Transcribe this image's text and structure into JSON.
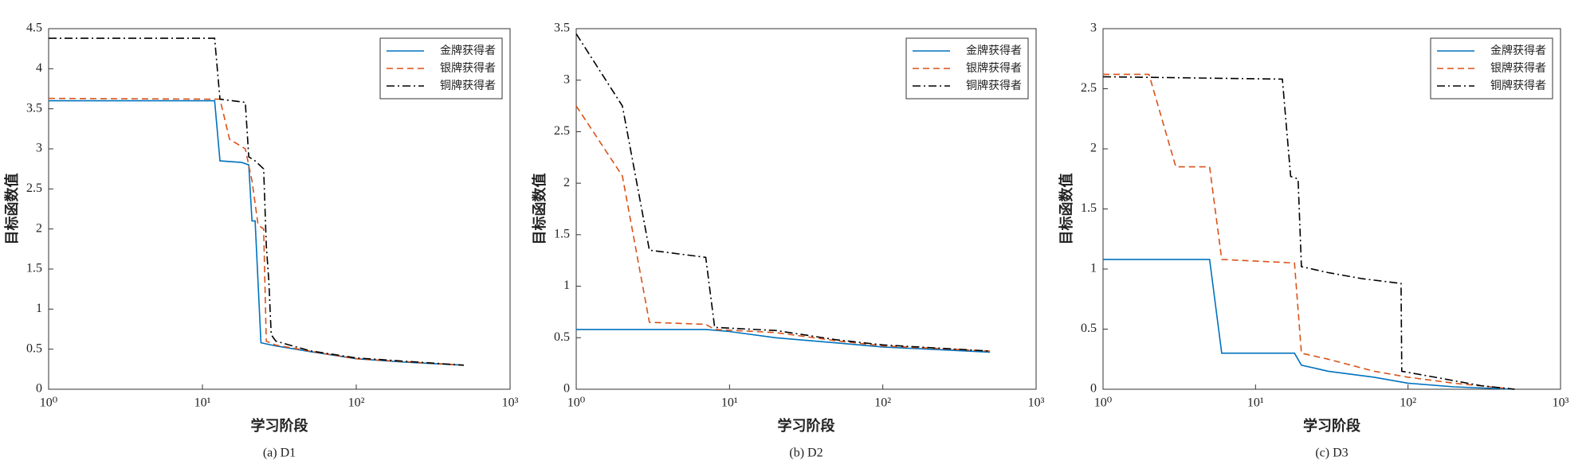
{
  "chart_data": [
    {
      "type": "line",
      "caption": "(a)  D1",
      "xlabel": "学习阶段",
      "ylabel": "目标函数值",
      "xscale": "log",
      "xlim": [
        1,
        1000
      ],
      "xticks": [
        {
          "value": 1,
          "label": "10⁰"
        },
        {
          "value": 10,
          "label": "10¹"
        },
        {
          "value": 100,
          "label": "10²"
        },
        {
          "value": 1000,
          "label": "10³"
        }
      ],
      "ylim": [
        0,
        4.5
      ],
      "yticks": [
        0,
        0.5,
        1,
        1.5,
        2,
        2.5,
        3,
        3.5,
        4,
        4.5
      ],
      "legend": "upper right",
      "series": [
        {
          "name": "金牌获得者",
          "color": "#0072bd",
          "linestyle": "solid",
          "x": [
            1,
            12,
            13,
            18,
            20,
            21,
            22,
            24,
            30,
            50,
            100,
            200,
            500
          ],
          "values": [
            3.6,
            3.6,
            2.85,
            2.83,
            2.8,
            2.1,
            2.1,
            0.58,
            0.54,
            0.47,
            0.38,
            0.34,
            0.3
          ]
        },
        {
          "name": "银牌获得者",
          "color": "#d95319",
          "linestyle": "dashed",
          "x": [
            1,
            13,
            15,
            19,
            21,
            23,
            25,
            26,
            30,
            60,
            100,
            500
          ],
          "values": [
            3.63,
            3.62,
            3.12,
            3.0,
            2.6,
            2.05,
            2.0,
            0.6,
            0.55,
            0.45,
            0.38,
            0.3
          ]
        },
        {
          "name": "铜牌获得者",
          "color": "#000000",
          "linestyle": "dashdot",
          "x": [
            1,
            12,
            13,
            19,
            20,
            22,
            25,
            26,
            27,
            28,
            30,
            50,
            100,
            500
          ],
          "values": [
            4.38,
            4.38,
            3.62,
            3.58,
            2.9,
            2.85,
            2.75,
            1.8,
            1.35,
            0.68,
            0.6,
            0.48,
            0.39,
            0.3
          ]
        }
      ]
    },
    {
      "type": "line",
      "caption": "(b)  D2",
      "xlabel": "学习阶段",
      "ylabel": "目标函数值",
      "xscale": "log",
      "xlim": [
        1,
        1000
      ],
      "xticks": [
        {
          "value": 1,
          "label": "10⁰"
        },
        {
          "value": 10,
          "label": "10¹"
        },
        {
          "value": 100,
          "label": "10²"
        },
        {
          "value": 1000,
          "label": "10³"
        }
      ],
      "ylim": [
        0,
        3.5
      ],
      "yticks": [
        0,
        0.5,
        1,
        1.5,
        2,
        2.5,
        3,
        3.5
      ],
      "legend": "upper right",
      "series": [
        {
          "name": "金牌获得者",
          "color": "#0072bd",
          "linestyle": "solid",
          "x": [
            1,
            7,
            10,
            20,
            50,
            100,
            500
          ],
          "values": [
            0.58,
            0.58,
            0.56,
            0.5,
            0.45,
            0.41,
            0.36
          ]
        },
        {
          "name": "银牌获得者",
          "color": "#d95319",
          "linestyle": "dashed",
          "x": [
            1,
            2,
            3,
            7,
            8,
            20,
            50,
            100,
            500
          ],
          "values": [
            2.75,
            2.07,
            0.65,
            0.63,
            0.58,
            0.55,
            0.47,
            0.42,
            0.37
          ]
        },
        {
          "name": "铜牌获得者",
          "color": "#000000",
          "linestyle": "dashdot",
          "x": [
            1,
            2,
            3,
            7,
            8,
            20,
            50,
            100,
            500
          ],
          "values": [
            3.45,
            2.75,
            1.35,
            1.28,
            0.6,
            0.57,
            0.48,
            0.43,
            0.37
          ]
        }
      ]
    },
    {
      "type": "line",
      "caption": "(c)  D3",
      "xlabel": "学习阶段",
      "ylabel": "目标函数值",
      "xscale": "log",
      "xlim": [
        1,
        1000
      ],
      "xticks": [
        {
          "value": 1,
          "label": "10⁰"
        },
        {
          "value": 10,
          "label": "10¹"
        },
        {
          "value": 100,
          "label": "10²"
        },
        {
          "value": 1000,
          "label": "10³"
        }
      ],
      "ylim": [
        0,
        3
      ],
      "yticks": [
        0,
        0.5,
        1,
        1.5,
        2,
        2.5,
        3
      ],
      "legend": "upper right",
      "series": [
        {
          "name": "金牌获得者",
          "color": "#0072bd",
          "linestyle": "solid",
          "x": [
            1,
            5,
            6,
            18,
            20,
            30,
            60,
            100,
            200,
            500
          ],
          "values": [
            1.08,
            1.08,
            0.3,
            0.3,
            0.2,
            0.15,
            0.1,
            0.05,
            0.02,
            0
          ]
        },
        {
          "name": "银牌获得者",
          "color": "#d95319",
          "linestyle": "dashed",
          "x": [
            1,
            2,
            3,
            5,
            6,
            18,
            20,
            30,
            60,
            100,
            200,
            500
          ],
          "values": [
            2.62,
            2.62,
            1.85,
            1.85,
            1.08,
            1.05,
            0.3,
            0.25,
            0.15,
            0.1,
            0.05,
            0
          ]
        },
        {
          "name": "铜牌获得者",
          "color": "#000000",
          "linestyle": "dashdot",
          "x": [
            1,
            15,
            17,
            19,
            20,
            30,
            50,
            90,
            91,
            150,
            300,
            500
          ],
          "values": [
            2.6,
            2.58,
            1.77,
            1.75,
            1.02,
            0.97,
            0.92,
            0.88,
            0.15,
            0.1,
            0.03,
            0
          ]
        }
      ]
    }
  ]
}
